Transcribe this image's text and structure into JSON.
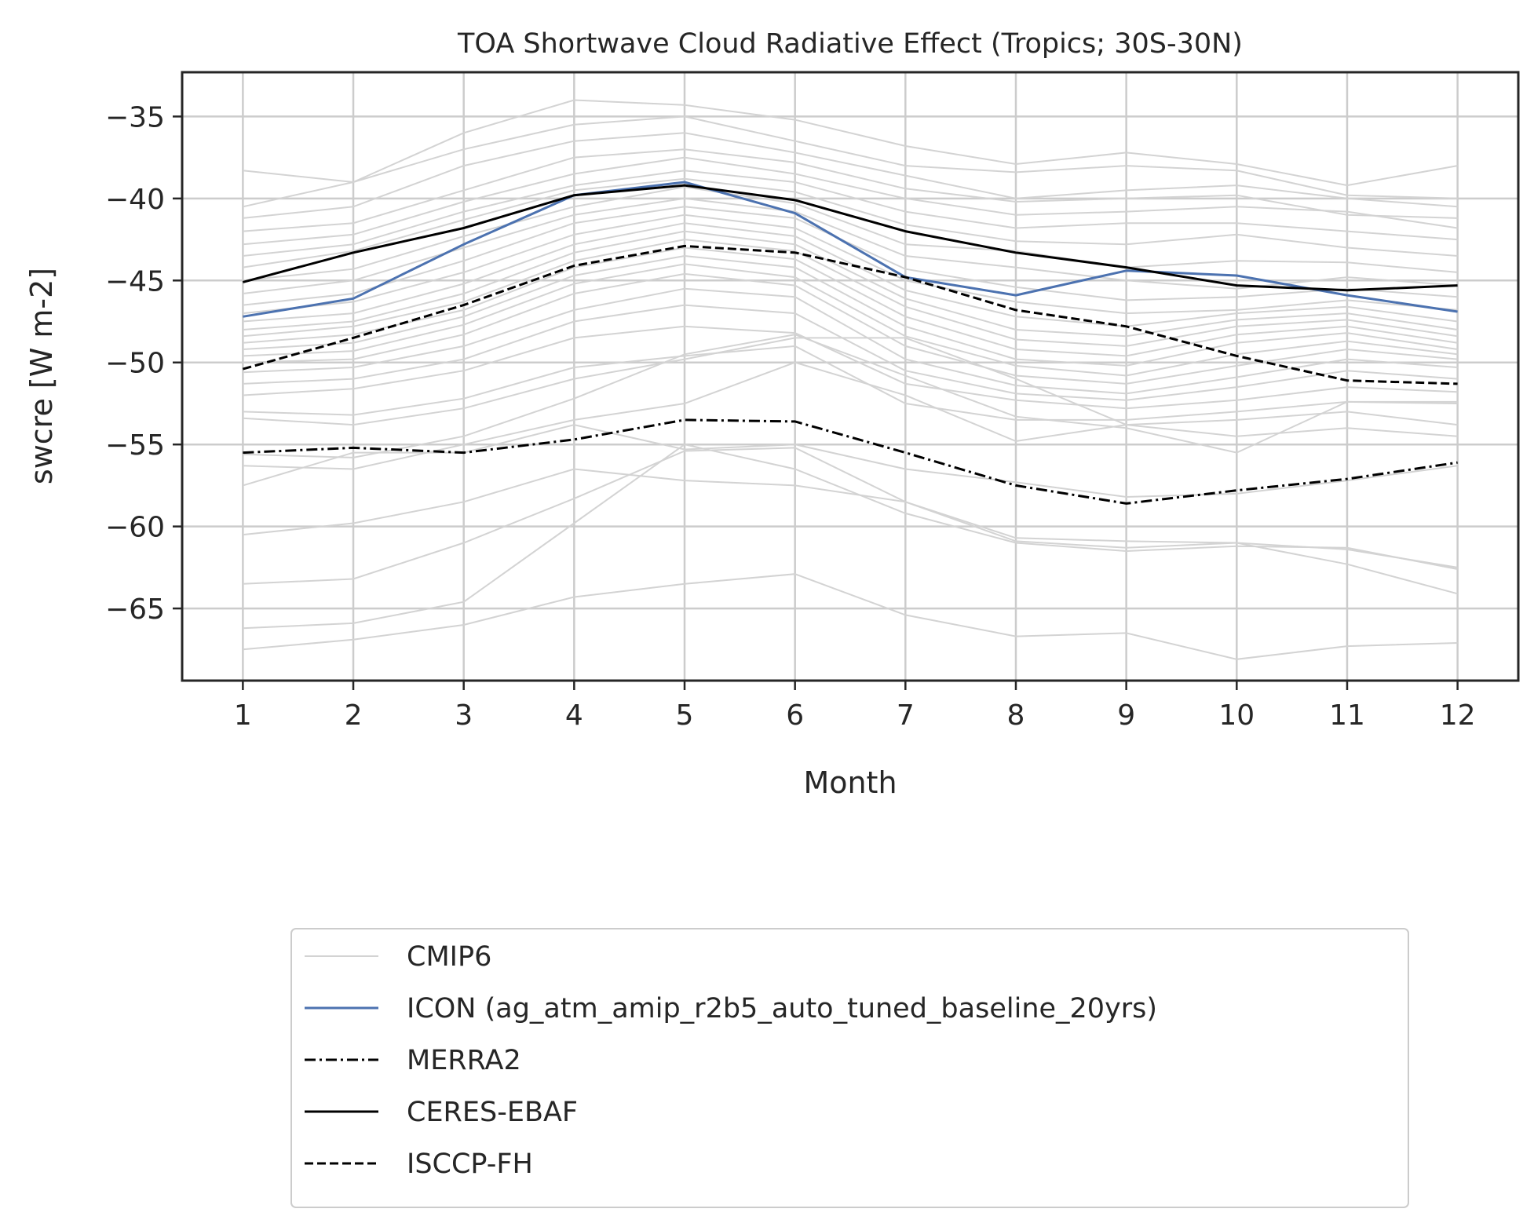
{
  "chart_data": {
    "type": "line",
    "title": "TOA Shortwave Cloud Radiative Effect (Tropics; 30S-30N)",
    "xlabel": "Month",
    "ylabel": "swcre [W m-2]",
    "x": [
      1,
      2,
      3,
      4,
      5,
      6,
      7,
      8,
      9,
      10,
      11,
      12
    ],
    "xlim": [
      0.45,
      12.55
    ],
    "ylim": [
      -69.4,
      -32.3
    ],
    "xticks": [
      1,
      2,
      3,
      4,
      5,
      6,
      7,
      8,
      9,
      10,
      11,
      12
    ],
    "yticks": [
      -65,
      -60,
      -55,
      -50,
      -45,
      -40,
      -35
    ],
    "grid": true,
    "legend_position": "below plot",
    "cmip6_color": "#d3d3d3",
    "cmip6_label": "CMIP6",
    "cmip6_members": [
      [
        -38.3,
        -39.0,
        -36.0,
        -34.0,
        -34.3,
        -35.2,
        -36.8,
        -37.9,
        -37.2,
        -37.9,
        -39.2,
        -38.0
      ],
      [
        -40.5,
        -39.0,
        -37.0,
        -35.5,
        -35.0,
        -36.5,
        -38.0,
        -38.4,
        -38.0,
        -38.3,
        -39.8,
        -40.0
      ],
      [
        -41.2,
        -40.5,
        -38.0,
        -36.5,
        -36.0,
        -37.2,
        -38.6,
        -40.0,
        -39.5,
        -39.2,
        -40.0,
        -40.5
      ],
      [
        -42.0,
        -41.5,
        -39.5,
        -37.5,
        -37.0,
        -37.8,
        -39.4,
        -40.2,
        -40.0,
        -39.8,
        -41.0,
        -41.2
      ],
      [
        -42.8,
        -42.2,
        -40.2,
        -38.5,
        -37.5,
        -38.5,
        -40.0,
        -41.0,
        -40.8,
        -40.5,
        -40.8,
        -41.8
      ],
      [
        -43.5,
        -42.8,
        -40.8,
        -39.2,
        -38.3,
        -39.0,
        -40.8,
        -41.8,
        -41.5,
        -41.5,
        -42.0,
        -42.5
      ],
      [
        -44.2,
        -43.2,
        -41.3,
        -39.5,
        -38.8,
        -39.6,
        -41.6,
        -42.6,
        -42.8,
        -42.2,
        -43.0,
        -43.5
      ],
      [
        -45.0,
        -44.3,
        -42.3,
        -40.5,
        -39.3,
        -40.3,
        -42.8,
        -43.2,
        -44.2,
        -43.8,
        -43.9,
        -44.5
      ],
      [
        -45.8,
        -45.0,
        -43.0,
        -41.0,
        -40.0,
        -40.8,
        -43.5,
        -44.2,
        -45.0,
        -45.5,
        -44.8,
        -45.3
      ],
      [
        -46.5,
        -45.8,
        -43.8,
        -41.5,
        -40.5,
        -41.2,
        -44.3,
        -45.4,
        -46.2,
        -46.0,
        -45.5,
        -46.0
      ],
      [
        -47.0,
        -46.3,
        -44.5,
        -42.2,
        -41.0,
        -41.8,
        -45.0,
        -46.3,
        -47.0,
        -46.8,
        -46.2,
        -46.8
      ],
      [
        -47.5,
        -47.0,
        -45.2,
        -42.8,
        -41.5,
        -42.3,
        -45.6,
        -47.2,
        -47.8,
        -47.0,
        -46.6,
        -47.5
      ],
      [
        -48.0,
        -47.5,
        -45.8,
        -43.3,
        -42.0,
        -42.8,
        -46.1,
        -48.0,
        -48.4,
        -47.4,
        -47.0,
        -48.0
      ],
      [
        -48.4,
        -47.8,
        -46.3,
        -43.8,
        -42.5,
        -43.2,
        -46.6,
        -48.6,
        -49.0,
        -47.8,
        -47.4,
        -48.4
      ],
      [
        -48.8,
        -48.3,
        -46.8,
        -44.2,
        -43.0,
        -43.7,
        -47.2,
        -49.2,
        -49.6,
        -48.3,
        -47.8,
        -48.8
      ],
      [
        -49.2,
        -48.8,
        -47.2,
        -44.7,
        -43.5,
        -44.2,
        -47.8,
        -49.8,
        -50.2,
        -48.8,
        -48.2,
        -49.2
      ],
      [
        -49.6,
        -49.3,
        -47.7,
        -45.2,
        -44.0,
        -44.8,
        -48.4,
        -50.2,
        -50.8,
        -49.5,
        -48.7,
        -49.5
      ],
      [
        -50.0,
        -49.8,
        -48.3,
        -45.8,
        -44.6,
        -45.3,
        -49.0,
        -50.8,
        -51.3,
        -50.2,
        -49.2,
        -49.8
      ],
      [
        -50.6,
        -50.3,
        -49.0,
        -46.8,
        -45.5,
        -46.0,
        -49.8,
        -51.4,
        -51.9,
        -50.9,
        -49.8,
        -50.3
      ],
      [
        -51.3,
        -51.0,
        -49.8,
        -47.5,
        -46.5,
        -47.0,
        -50.5,
        -51.9,
        -52.3,
        -51.5,
        -50.5,
        -51.0
      ],
      [
        -52.0,
        -51.6,
        -50.5,
        -48.5,
        -47.8,
        -48.2,
        -51.3,
        -52.3,
        -52.8,
        -52.3,
        -51.5,
        -51.8
      ],
      [
        -53.0,
        -53.2,
        -52.2,
        -50.3,
        -49.6,
        -49.0,
        -52.5,
        -53.5,
        -53.5,
        -53.0,
        -52.4,
        -52.4
      ],
      [
        -53.4,
        -53.8,
        -52.8,
        -51.0,
        -49.8,
        -48.5,
        -48.5,
        -51.0,
        -53.8,
        -53.5,
        -53.0,
        -53.8
      ],
      [
        -55.6,
        -55.8,
        -54.5,
        -52.2,
        -49.5,
        -48.3,
        -50.8,
        -53.3,
        -54.0,
        -55.5,
        -52.4,
        -52.5
      ],
      [
        -56.3,
        -56.5,
        -55.0,
        -53.5,
        -52.5,
        -50.0,
        -52.0,
        -54.8,
        -53.8,
        -54.5,
        -54.0,
        -54.5
      ],
      [
        -57.5,
        -55.5,
        -55.5,
        -53.8,
        -55.3,
        -55.0,
        -56.5,
        -57.3,
        -58.2,
        -58.0,
        -57.2,
        -56.3
      ],
      [
        -60.5,
        -59.8,
        -58.5,
        -56.5,
        -57.2,
        -57.5,
        -58.5,
        -60.9,
        -61.3,
        -61.0,
        -61.4,
        -62.5
      ],
      [
        -63.5,
        -63.2,
        -61.0,
        -58.3,
        -55.4,
        -55.2,
        -58.5,
        -60.7,
        -60.9,
        -61.0,
        -62.3,
        -64.1
      ],
      [
        -66.2,
        -65.9,
        -64.6,
        -59.8,
        -55.0,
        -56.5,
        -59.2,
        -61.0,
        -61.5,
        -61.2,
        -61.3,
        -62.6
      ],
      [
        -67.5,
        -66.9,
        -66.0,
        -64.3,
        -63.5,
        -62.9,
        -65.4,
        -66.7,
        -66.5,
        -68.1,
        -67.3,
        -67.1
      ]
    ],
    "series": [
      {
        "name": "ICON (ag_atm_amip_r2b5_auto_tuned_baseline_20yrs)",
        "color": "#4c72b0",
        "style": "solid",
        "values": [
          -47.2,
          -46.1,
          -42.8,
          -39.8,
          -39.0,
          -40.9,
          -44.8,
          -45.9,
          -44.4,
          -44.7,
          -45.9,
          -46.9
        ]
      },
      {
        "name": "MERRA2",
        "color": "#000000",
        "style": "dashdot",
        "values": [
          -55.5,
          -55.2,
          -55.5,
          -54.7,
          -53.5,
          -53.6,
          -55.5,
          -57.5,
          -58.6,
          -57.8,
          -57.1,
          -56.1
        ]
      },
      {
        "name": "CERES-EBAF",
        "color": "#000000",
        "style": "solid",
        "values": [
          -45.1,
          -43.3,
          -41.8,
          -39.8,
          -39.2,
          -40.1,
          -42.0,
          -43.3,
          -44.2,
          -45.3,
          -45.6,
          -45.3
        ]
      },
      {
        "name": "ISCCP-FH",
        "color": "#000000",
        "style": "dashed",
        "values": [
          -50.4,
          -48.5,
          -46.5,
          -44.1,
          -42.9,
          -43.3,
          -44.8,
          -46.8,
          -47.8,
          -49.6,
          -51.1,
          -51.3
        ]
      }
    ]
  }
}
